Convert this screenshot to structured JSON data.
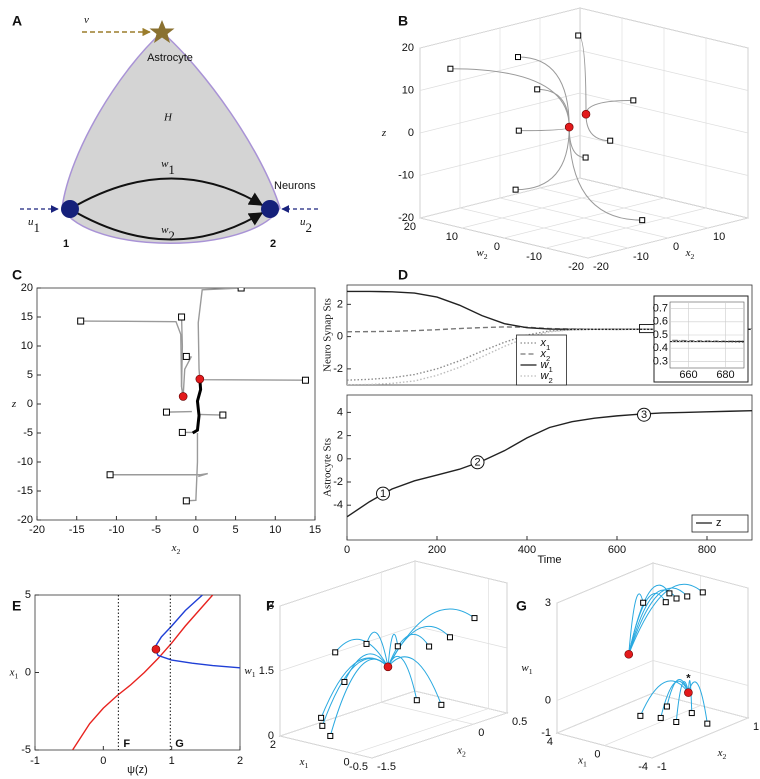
{
  "panel_labels": [
    "A",
    "B",
    "C",
    "D",
    "E",
    "F",
    "G"
  ],
  "diagram": {
    "input_v": {
      "symbol": "v"
    },
    "astrocyte": "Astrocyte",
    "region": "H",
    "edge1": {
      "symbol": "w",
      "sub": "1"
    },
    "edge2": {
      "symbol": "w",
      "sub": "2"
    },
    "neurons": "Neurons",
    "input_u1": {
      "symbol": "u",
      "sub": "1"
    },
    "input_u2": {
      "symbol": "u",
      "sub": "2"
    },
    "node1": "1",
    "node2": "2"
  },
  "chart_data": [
    {
      "type": "scatter3d",
      "xlabel": {
        "symbol": "x",
        "sub": "2"
      },
      "ylabel": {
        "symbol": "w",
        "sub": "2"
      },
      "zlabel": {
        "symbol": "z"
      },
      "xlim": [
        -20,
        20
      ],
      "xticks": [
        -20,
        -10,
        0,
        10
      ],
      "ylim": [
        -20,
        20
      ],
      "yticks": [
        -20,
        -10,
        0,
        10,
        20
      ],
      "zlim": [
        -20,
        20
      ],
      "zticks": [
        -20,
        -10,
        0,
        10,
        20
      ],
      "line_color": "#9a9a9a",
      "points": [
        {
          "marker": "square",
          "color": "#000000",
          "x": [
            5.7,
            -1.8,
            -14.5,
            -1.2,
            13.8,
            -3.7,
            3.4,
            -1.7,
            -10.8,
            -1.2
          ],
          "y": [
            6.8,
            14,
            18,
            10,
            1.4,
            12,
            -3,
            -2,
            6,
            -15
          ],
          "z": [
            20,
            15,
            14.3,
            8.2,
            4.1,
            -1.4,
            -1.9,
            -4.9,
            -12.2,
            -16.7
          ]
        },
        {
          "marker": "dot",
          "color": "#e31a1c",
          "x": [
            0.5,
            -1.6
          ],
          "y": [
            0,
            2
          ],
          "z": [
            4.3,
            1.3
          ]
        }
      ]
    },
    {
      "type": "line",
      "xlabel": {
        "symbol": "x",
        "sub": "2"
      },
      "ylabel": {
        "symbol": "z"
      },
      "xlim": [
        -20,
        15
      ],
      "xticks": [
        -20,
        -15,
        -10,
        -5,
        0,
        5,
        10,
        15
      ],
      "ylim": [
        -20,
        20
      ],
      "yticks": [
        -20,
        -15,
        -10,
        -5,
        0,
        5,
        10,
        15,
        20
      ],
      "series": [
        {
          "color": "#9a9a9a",
          "x": [
            5.7,
            0.8,
            0.3,
            0.4,
            0.5
          ],
          "values": [
            20,
            19.7,
            14,
            6,
            4.3
          ]
        },
        {
          "color": "#9a9a9a",
          "x": [
            -1.8,
            -1.7,
            -1.8,
            -1.6
          ],
          "values": [
            15,
            10,
            3,
            1.3
          ]
        },
        {
          "color": "#9a9a9a",
          "x": [
            -14.5,
            -2.5,
            -1.9,
            -1.8,
            -1.6
          ],
          "values": [
            14.3,
            14.2,
            12,
            3,
            1.3
          ]
        },
        {
          "color": "#9a9a9a",
          "x": [
            -1.2,
            -0.6,
            -1.4,
            -1.6
          ],
          "values": [
            8.2,
            8.1,
            6,
            1.3
          ]
        },
        {
          "color": "#9a9a9a",
          "x": [
            13.8,
            1,
            0.5
          ],
          "values": [
            4.1,
            4.2,
            4.3
          ]
        },
        {
          "color": "#9a9a9a",
          "x": [
            -3.7,
            -0.5
          ],
          "values": [
            -1.4,
            -1.3
          ]
        },
        {
          "color": "#9a9a9a",
          "x": [
            3.4,
            0.3
          ],
          "values": [
            -1.9,
            -1.8
          ]
        },
        {
          "color": "#9a9a9a",
          "x": [
            -1.7,
            0
          ],
          "values": [
            -4.9,
            -4.9
          ]
        },
        {
          "color": "#9a9a9a",
          "x": [
            -10.8,
            0.5,
            1.5,
            0.3
          ],
          "values": [
            -12.2,
            -12.2,
            -12,
            -12.5
          ]
        },
        {
          "color": "#9a9a9a",
          "x": [
            -1.2,
            0,
            0.2,
            0.2
          ],
          "values": [
            -16.7,
            -16.6,
            -10,
            -5
          ]
        },
        {
          "color": "#000000",
          "width": 3,
          "x": [
            0.5,
            0.6,
            0.2,
            0.4,
            0.2,
            -0.4
          ],
          "values": [
            4.3,
            2.5,
            0.5,
            -2,
            -4.5,
            -5
          ]
        },
        {
          "color": "#000000",
          "marker": "square",
          "x": [
            5.7,
            -1.8,
            -14.5,
            -1.2,
            13.8,
            -3.7,
            3.4,
            -1.7,
            -10.8,
            -1.2
          ],
          "values": [
            20,
            15,
            14.3,
            8.2,
            4.1,
            -1.4,
            -1.9,
            -4.9,
            -12.2,
            -16.7
          ]
        },
        {
          "color": "#e31a1c",
          "marker": "dot",
          "x": [
            0.5,
            -1.6
          ],
          "values": [
            4.3,
            1.3
          ]
        }
      ]
    },
    {
      "type": "line",
      "ylabel": "Neuro Synap Sts",
      "xlim": [
        0,
        900
      ],
      "ylim": [
        -3,
        3.2
      ],
      "yticks": [
        -2,
        0,
        2
      ],
      "legend": true,
      "legend_position": "center",
      "x": [
        0,
        50,
        100,
        150,
        200,
        250,
        300,
        350,
        400,
        450,
        500,
        550,
        600,
        650,
        700,
        750,
        800,
        850,
        900
      ],
      "series": [
        {
          "name": {
            "symbol": "x",
            "sub": "1"
          },
          "color": "#8c8c8c",
          "dash": "dotted",
          "values": [
            -2.7,
            -2.65,
            -2.55,
            -2.35,
            -2.0,
            -1.5,
            -0.9,
            -0.35,
            0.1,
            0.35,
            0.42,
            0.45,
            0.44,
            0.46,
            0.44,
            0.46,
            0.45,
            0.44,
            0.46
          ]
        },
        {
          "name": {
            "symbol": "x",
            "sub": "2"
          },
          "color": "#777777",
          "dash": "dashed",
          "values": [
            0.3,
            0.31,
            0.33,
            0.37,
            0.43,
            0.5,
            0.56,
            0.6,
            0.58,
            0.5,
            0.47,
            0.45,
            0.45,
            0.46,
            0.45,
            0.46,
            0.45,
            0.46,
            0.45
          ]
        },
        {
          "name": {
            "symbol": "w",
            "sub": "1"
          },
          "color": "#222222",
          "values": [
            2.8,
            2.8,
            2.78,
            2.7,
            2.45,
            1.95,
            1.3,
            0.8,
            0.55,
            0.47,
            0.45,
            0.45,
            0.45,
            0.45,
            0.45,
            0.45,
            0.45,
            0.45,
            0.45
          ]
        },
        {
          "name": {
            "symbol": "w",
            "sub": "2"
          },
          "color": "#bdbdbd",
          "dash": "dotted",
          "values": [
            -3.0,
            -2.97,
            -2.9,
            -2.75,
            -2.4,
            -1.9,
            -1.25,
            -0.6,
            -0.05,
            0.3,
            0.42,
            0.46,
            0.44,
            0.45,
            0.46,
            0.44,
            0.45,
            0.46,
            0.44
          ]
        }
      ],
      "inset": {
        "xlim": [
          650,
          690
        ],
        "xticks": [
          660,
          680
        ],
        "ylim": [
          0.25,
          0.75
        ],
        "yticks": [
          0.3,
          0.4,
          0.5,
          0.6,
          0.7
        ],
        "grid": true
      }
    },
    {
      "type": "line",
      "xlabel": "Time",
      "ylabel": "Astrocyte Sts",
      "xlim": [
        0,
        900
      ],
      "xticks": [
        0,
        200,
        400,
        600,
        800
      ],
      "ylim": [
        -7,
        5.5
      ],
      "yticks": [
        -4,
        -2,
        0,
        2,
        4
      ],
      "legend": true,
      "legend_position": "lower right",
      "x": [
        0,
        50,
        100,
        150,
        200,
        250,
        300,
        350,
        400,
        450,
        500,
        550,
        600,
        650,
        700,
        750,
        800,
        850,
        900
      ],
      "series": [
        {
          "name": "z",
          "color": "#222222",
          "values": [
            -5,
            -3.7,
            -2.6,
            -1.9,
            -1.4,
            -0.9,
            -0.2,
            0.7,
            1.8,
            2.7,
            3.2,
            3.5,
            3.7,
            3.85,
            3.95,
            4.0,
            4.05,
            4.1,
            4.15
          ]
        }
      ],
      "annotations": [
        {
          "text": "1",
          "x": 80,
          "y": -3
        },
        {
          "text": "2",
          "x": 290,
          "y": -0.3
        },
        {
          "text": "3",
          "x": 660,
          "y": 3.8
        }
      ]
    },
    {
      "type": "line",
      "xlabel": "ψ(z)",
      "ylabel": {
        "symbol": "x",
        "sub": "1"
      },
      "xlim": [
        -1,
        2
      ],
      "xticks": [
        -1,
        0,
        1,
        2
      ],
      "ylim": [
        -5,
        5
      ],
      "yticks": [
        -5,
        0,
        5
      ],
      "series": [
        {
          "color": "#e8231f",
          "x": [
            -0.45,
            -0.2,
            0,
            0.2,
            0.4,
            0.6,
            0.8,
            1.0,
            1.2,
            1.4,
            1.6
          ],
          "values": [
            -5,
            -3.3,
            -2.3,
            -1.5,
            -0.8,
            0,
            0.9,
            1.9,
            3.0,
            4.0,
            5.0
          ]
        },
        {
          "color": "#1f3fd6",
          "x": [
            1.45,
            1.2,
            1.0,
            0.85,
            0.75,
            0.8,
            1.0,
            1.3,
            1.6,
            2.0
          ],
          "values": [
            5,
            4.0,
            3.0,
            2.3,
            1.6,
            1.1,
            0.8,
            0.6,
            0.45,
            0.3
          ]
        },
        {
          "color": "#e31a1c",
          "marker": "dot",
          "x": [
            0.77
          ],
          "values": [
            1.5
          ]
        }
      ],
      "vlines": [
        {
          "x": 0.22,
          "label": "F"
        },
        {
          "x": 0.98,
          "label": "G"
        }
      ]
    },
    {
      "type": "scatter3d",
      "xlabel": {
        "symbol": "x",
        "sub": "2"
      },
      "ylabel": {
        "symbol": "x",
        "sub": "1"
      },
      "zlabel": {
        "symbol": "w",
        "sub": "1"
      },
      "xlim": [
        -1.5,
        0.5
      ],
      "xticks": [
        -1.5,
        0,
        0.5
      ],
      "ylim": [
        -0.5,
        2
      ],
      "yticks": [
        -0.5,
        0,
        2
      ],
      "zlim": [
        0,
        3
      ],
      "zticks": [
        0,
        1.5,
        3
      ],
      "line_color": "#29a9e0",
      "points": [
        {
          "marker": "square",
          "color": "#000000",
          "x": [
            -0.9,
            -0.6,
            -0.3,
            0,
            0.2,
            0.4,
            -0.4,
            -0.2,
            -1.2,
            -1.3,
            -1.0,
            -0.6
          ],
          "y": [
            1.6,
            1.3,
            1.0,
            0.7,
            0.5,
            0.2,
            0.3,
            0,
            1.4,
            1.0,
            1.8,
            1.9
          ],
          "z": [
            1.7,
            1.8,
            1.65,
            1.55,
            1.7,
            2.1,
            0.6,
            0.45,
            0.2,
            0.1,
            0.2,
            0.8
          ]
        },
        {
          "marker": "dot",
          "color": "#e31a1c",
          "x": [
            -0.5
          ],
          "y": [
            0.9
          ],
          "z": [
            1.3
          ]
        }
      ]
    },
    {
      "type": "scatter3d",
      "xlabel": {
        "symbol": "x",
        "sub": "2"
      },
      "ylabel": {
        "symbol": "x",
        "sub": "1"
      },
      "zlabel": {
        "symbol": "w",
        "sub": "1"
      },
      "xlim": [
        -1,
        1
      ],
      "xticks": [
        -1,
        1
      ],
      "ylim": [
        -4,
        4
      ],
      "yticks": [
        -4,
        0,
        4
      ],
      "zlim": [
        -1,
        3
      ],
      "zticks": [
        -1,
        0,
        3
      ],
      "line_color": "#29a9e0",
      "points": [
        {
          "marker": "square",
          "color": "#000000",
          "x": [
            0.6,
            0.4,
            0.5,
            0.6,
            0.8,
            0.3,
            0,
            -0.2,
            -0.5,
            0.3,
            0.2,
            0.4
          ],
          "y": [
            1,
            0.5,
            0,
            -0.5,
            -1,
            2,
            -2,
            -1.5,
            -1,
            0,
            -2.5,
            -3
          ],
          "z": [
            2.6,
            2.5,
            2.6,
            2.65,
            2.7,
            2.4,
            -0.7,
            -0.5,
            -0.3,
            -0.6,
            -0.5,
            -0.9
          ]
        },
        {
          "marker": "dot",
          "color": "#e31a1c",
          "x": [
            0,
            0.5
          ],
          "y": [
            2,
            -1
          ],
          "z": [
            1,
            -0.2
          ]
        }
      ],
      "annotations": [
        {
          "text": "*",
          "x": 0.5,
          "y": -1,
          "z": 0.35
        }
      ]
    }
  ]
}
